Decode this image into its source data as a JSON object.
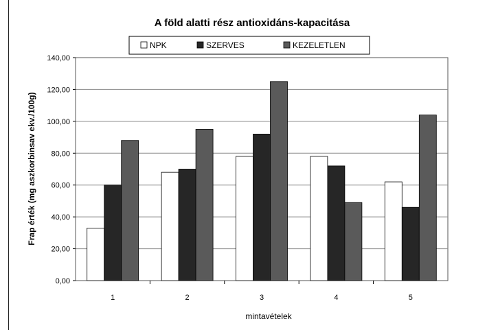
{
  "chart_data": {
    "type": "bar",
    "title": "A föld alatti rész antioxidáns-kapacitása",
    "xlabel": "mintavételek",
    "ylabel": "Frap érték (mg aszkorbinsav ekv./100g)",
    "categories": [
      "1",
      "2",
      "3",
      "4",
      "5"
    ],
    "ylim": [
      0,
      140
    ],
    "yticks": [
      "0,00",
      "20,00",
      "40,00",
      "60,00",
      "80,00",
      "100,00",
      "120,00",
      "140,00"
    ],
    "ytick_values": [
      0,
      20,
      40,
      60,
      80,
      100,
      120,
      140
    ],
    "grid": "horizontal",
    "legend_position": "top",
    "series": [
      {
        "name": "NPK",
        "color": "#ffffff",
        "values": [
          33,
          68,
          78,
          78,
          62
        ]
      },
      {
        "name": "SZERVES",
        "color": "#262626",
        "values": [
          60,
          70,
          92,
          72,
          46
        ]
      },
      {
        "name": "KEZELETLEN",
        "color": "#5a5a5a",
        "values": [
          88,
          95,
          125,
          49,
          104
        ]
      }
    ]
  }
}
